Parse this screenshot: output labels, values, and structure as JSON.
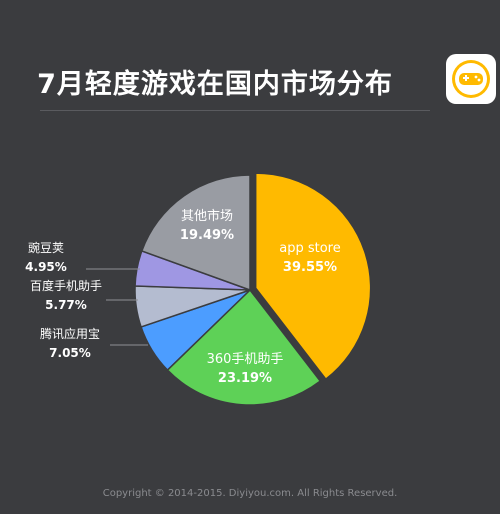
{
  "title": "7月轻度游戏在国内市场分布",
  "logo_icon": "gamepad-icon",
  "footer": "Copyright © 2014-2015. Diyiyou.com. All Rights Reserved.",
  "colors": {
    "background": "#3b3c3f",
    "app_store": "#ffba00",
    "360": "#5ed157",
    "tencent": "#4c9dff",
    "baidu": "#b4bcd0",
    "wandoujia": "#9f97e3",
    "other": "#999ca3"
  },
  "chart_data": {
    "type": "pie",
    "start_angle_deg": 0,
    "direction": "clockwise",
    "exploded": [
      "app store"
    ],
    "slices": [
      {
        "label": "app store",
        "value": 39.55,
        "value_text": "39.55%",
        "color": "#ffba00",
        "label_position": "inside"
      },
      {
        "label": "360手机助手",
        "value": 23.19,
        "value_text": "23.19%",
        "color": "#5ed157",
        "label_position": "inside"
      },
      {
        "label": "腾讯应用宝",
        "value": 7.05,
        "value_text": "7.05%",
        "color": "#4c9dff",
        "label_position": "outside-left"
      },
      {
        "label": "百度手机助手",
        "value": 5.77,
        "value_text": "5.77%",
        "color": "#b4bcd0",
        "label_position": "outside-left"
      },
      {
        "label": "豌豆荚",
        "value": 4.95,
        "value_text": "4.95%",
        "color": "#9f97e3",
        "label_position": "outside-left"
      },
      {
        "label": "其他市场",
        "value": 19.49,
        "value_text": "19.49%",
        "color": "#999ca3",
        "label_position": "inside"
      }
    ]
  }
}
